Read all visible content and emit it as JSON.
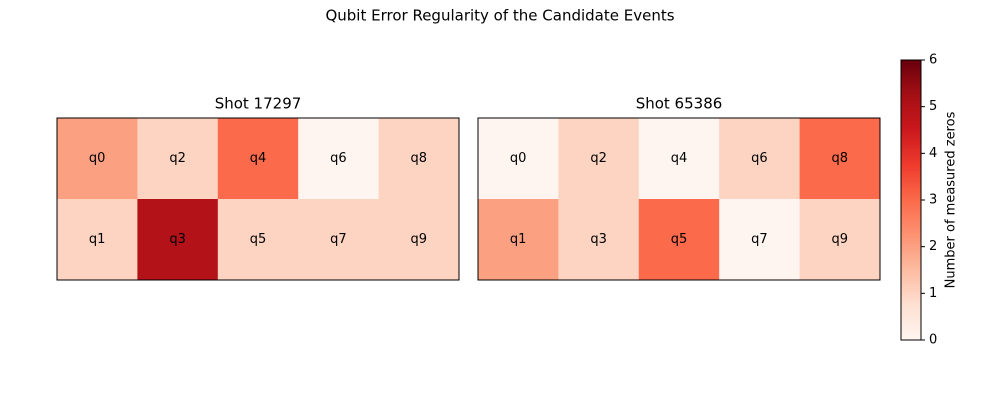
{
  "chart_data": {
    "type": "heatmap",
    "title": "Qubit Error Regularity of the Candidate Events",
    "cmap": "Reds",
    "colorbar": {
      "label": "Number of measured zeros",
      "lim": [
        0,
        6
      ],
      "ticks": [
        0,
        1,
        2,
        3,
        4,
        5,
        6
      ]
    },
    "panels": [
      {
        "title": "Shot 17297",
        "labels": [
          [
            "q0",
            "q2",
            "q4",
            "q6",
            "q8"
          ],
          [
            "q1",
            "q3",
            "q5",
            "q7",
            "q9"
          ]
        ],
        "values": [
          [
            2,
            1,
            3,
            0,
            1
          ],
          [
            1,
            5,
            1,
            1,
            1
          ]
        ]
      },
      {
        "title": "Shot 65386",
        "labels": [
          [
            "q0",
            "q2",
            "q4",
            "q6",
            "q8"
          ],
          [
            "q1",
            "q3",
            "q5",
            "q7",
            "q9"
          ]
        ],
        "values": [
          [
            0,
            1,
            0,
            1,
            3
          ],
          [
            2,
            1,
            3,
            0,
            1
          ]
        ]
      }
    ]
  }
}
